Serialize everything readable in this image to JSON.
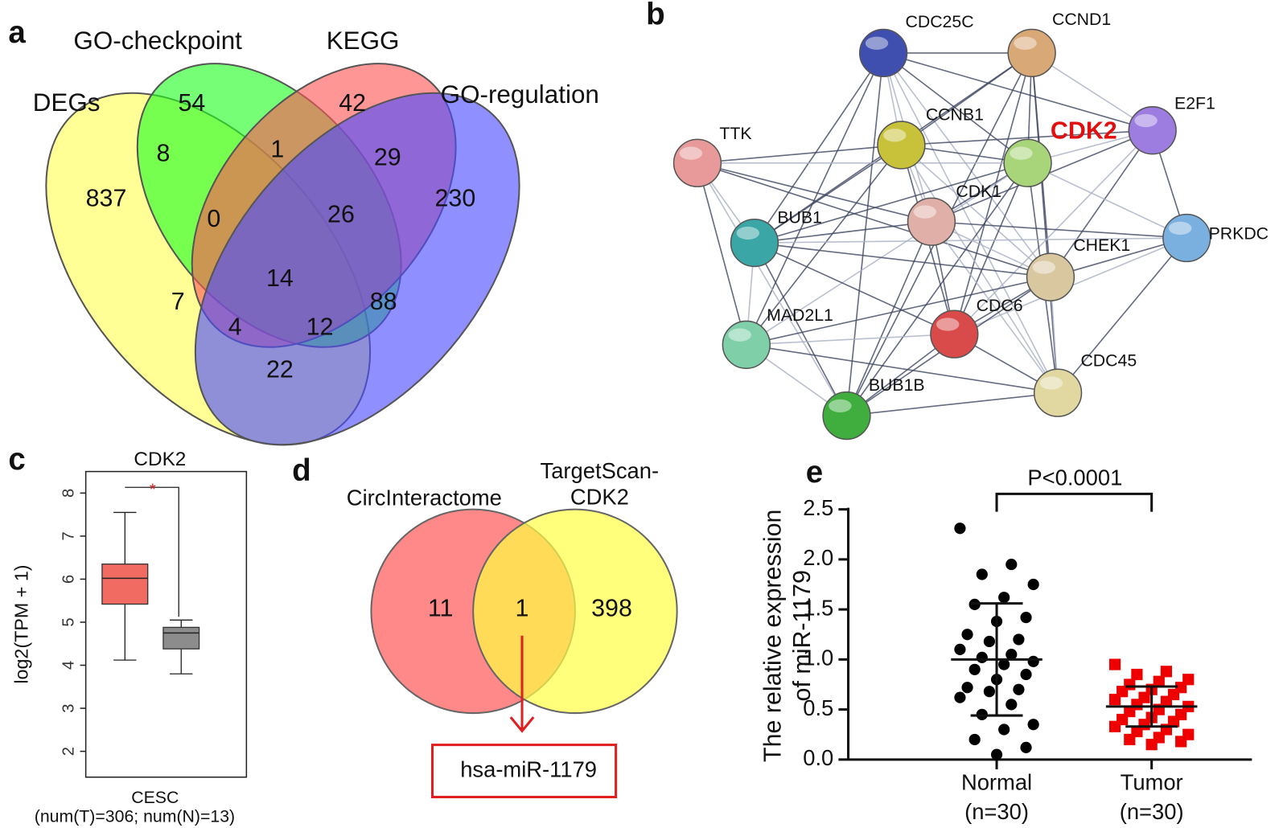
{
  "chart_data": [
    {
      "type": "venn",
      "panel": "a",
      "sets": [
        {
          "name": "DEGs",
          "color": "#ffff55"
        },
        {
          "name": "GO-checkpoint",
          "color": "#22ff22"
        },
        {
          "name": "KEGG",
          "color": "#ff5555"
        },
        {
          "name": "GO-regulation",
          "color": "#4a4aff"
        }
      ],
      "values": [
        837,
        54,
        42,
        230,
        8,
        1,
        29,
        0,
        26,
        7,
        14,
        88,
        4,
        12,
        22
      ]
    },
    {
      "type": "network",
      "panel": "b",
      "nodes": [
        "CDC25C",
        "CCND1",
        "E2F1",
        "CCNB1",
        "CDK2",
        "TTK",
        "CDK1",
        "BUB1",
        "PRKDC",
        "CHEK1",
        "CDC6",
        "MAD2L1",
        "CDC45",
        "BUB1B"
      ],
      "colors": [
        "#3f4fb0",
        "#d9a877",
        "#9d7ee0",
        "#c8c23a",
        "#a8d57a",
        "#e89a9a",
        "#e0b0a8",
        "#3aa6a6",
        "#7ab0e0",
        "#d9c7a0",
        "#d94a4a",
        "#7fd0a8",
        "#e0d8a0",
        "#3fae3f"
      ]
    },
    {
      "type": "box",
      "panel": "c",
      "title": "CDK2",
      "y_label": "log2(TPM + 1)",
      "x_label": "CESC",
      "x_note": "(num(T)=306; num(N)=13)",
      "ylim": [
        1.4,
        8.5
      ],
      "yticks": [
        2,
        3,
        4,
        5,
        6,
        7,
        8
      ],
      "significance": "*",
      "boxes": [
        {
          "whislo": 4.12,
          "q1": 5.42,
          "med": 6.02,
          "q3": 6.35,
          "whishi": 7.55,
          "color": "#f26b63"
        },
        {
          "whislo": 3.8,
          "q1": 4.38,
          "med": 4.75,
          "q3": 4.88,
          "whishi": 5.05,
          "color": "#8c8c8c"
        }
      ]
    },
    {
      "type": "venn",
      "panel": "d",
      "sets": [
        {
          "name": "CircInteractome",
          "color": "#ff5555"
        },
        {
          "name": "TargetScan-CDK2",
          "color": "#ffff44"
        }
      ],
      "values": [
        11,
        1,
        398
      ],
      "result": "hsa-miR-1179"
    },
    {
      "type": "scatter",
      "panel": "e",
      "y_label": "The relative expression of miR-1179",
      "categories": [
        "Normal",
        "Tumor"
      ],
      "category_notes": [
        "(n=30)",
        "(n=30)"
      ],
      "annotation": "P<0.0001",
      "ylim": [
        0,
        2.5
      ],
      "yticks": [
        {
          "value": 0,
          "label": "0.0"
        },
        0.5,
        {
          "value": 1,
          "label": "1.0"
        },
        1.5,
        {
          "value": 2,
          "label": "2.0"
        },
        2.5
      ],
      "series": [
        {
          "color": "#000000",
          "marker": "circle",
          "mean": 1.0,
          "sd": 0.56,
          "values": [
            2.31,
            1.95,
            1.85,
            1.75,
            1.62,
            1.55,
            1.42,
            1.38,
            1.25,
            1.2,
            1.18,
            1.1,
            1.05,
            1.02,
            0.98,
            0.95,
            0.9,
            0.85,
            0.8,
            0.72,
            0.7,
            0.68,
            0.62,
            0.55,
            0.45,
            0.35,
            0.3,
            0.2,
            0.12,
            0.05
          ]
        },
        {
          "color": "#ee0000",
          "marker": "square",
          "mean": 0.53,
          "sd": 0.2,
          "values": [
            0.95,
            0.88,
            0.85,
            0.8,
            0.78,
            0.75,
            0.72,
            0.7,
            0.68,
            0.65,
            0.62,
            0.6,
            0.58,
            0.55,
            0.53,
            0.5,
            0.48,
            0.45,
            0.42,
            0.4,
            0.38,
            0.35,
            0.33,
            0.3,
            0.28,
            0.25,
            0.22,
            0.2,
            0.18,
            0.15
          ]
        }
      ]
    }
  ]
}
